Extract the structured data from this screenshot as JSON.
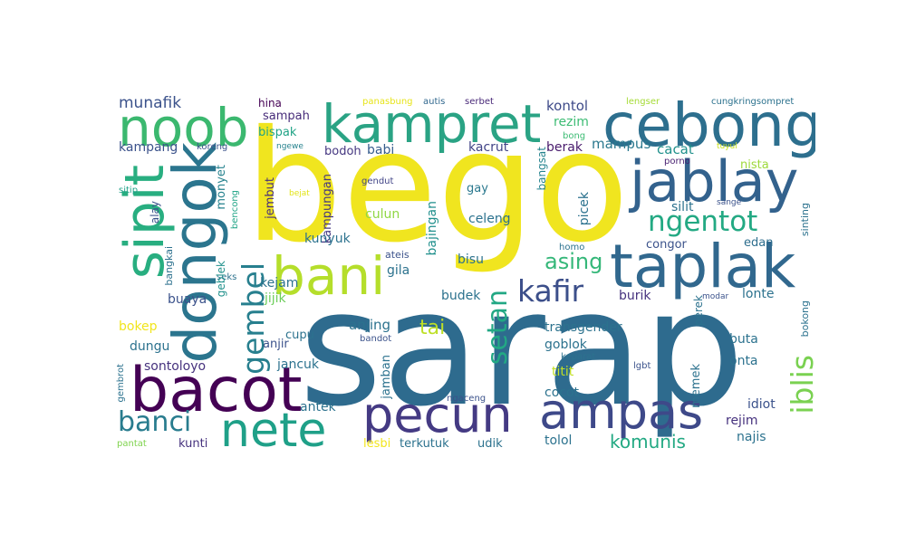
{
  "colors": {
    "background": "#ffffff",
    "palette": [
      "#440154",
      "#46327e",
      "#365c8d",
      "#277f8e",
      "#1fa187",
      "#4ac16d",
      "#a0da39",
      "#fde725"
    ]
  },
  "words": {
    "w1": "bego",
    "w2": "sarap",
    "w3": "noob",
    "w4": "kampret",
    "w5": "cebong",
    "w6": "dongok",
    "w7": "sipit",
    "w8": "jablay",
    "w9": "bani",
    "w10": "taplak",
    "w11": "ngentot",
    "w12": "bacot",
    "w13": "nete",
    "w14": "pecun",
    "w15": "ampas",
    "w16": "iblis",
    "w17": "gembel",
    "w18": "kafir",
    "w19": "setan",
    "w20": "asing",
    "w21": "banci",
    "w22": "komunis",
    "w23": "munafik",
    "w24": "hina",
    "w25": "panasbung",
    "w26": "autis",
    "w27": "serbet",
    "w28": "lengser",
    "w29": "cungkringsompret",
    "w30": "sampah",
    "w31": "kontol",
    "w32": "rezim",
    "w33": "bispak",
    "w34": "kampang",
    "w35": "koreng",
    "w36": "ngewe",
    "w37": "bong",
    "w38": "cacat",
    "w39": "tuyul",
    "w40": "bodoh",
    "w41": "babi",
    "w42": "kacrut",
    "w43": "berak",
    "w44": "mampus",
    "w45": "porno",
    "w46": "nista",
    "w47": "gendut",
    "w48": "sitip",
    "w49": "bejat",
    "w50": "monyet",
    "w51": "bencong",
    "w52": "alay",
    "w53": "jembut",
    "w54": "kampungan",
    "w55": "bangsat",
    "w56": "gay",
    "w57": "culun",
    "w58": "celeng",
    "w59": "bajingan",
    "w60": "picek",
    "w61": "silit",
    "w62": "sange",
    "w63": "sinting",
    "w64": "congor",
    "w65": "edan",
    "w66": "homo",
    "w67": "bangkai",
    "w68": "kunyuk",
    "w69": "ateis",
    "w70": "gila",
    "w71": "bisu",
    "w72": "seks",
    "w73": "geblek",
    "w74": "buaya",
    "w75": "kejam",
    "w76": "jijik",
    "w77": "budek",
    "w78": "burik",
    "w79": "lonte",
    "w80": "bokep",
    "w81": "anjing",
    "w82": "tai",
    "w83": "transgender",
    "w84": "perek",
    "w85": "modar",
    "w86": "bokong",
    "w87": "cupu",
    "w88": "anjir",
    "w89": "dungu",
    "w90": "bandot",
    "w91": "goblok",
    "w92": "buta",
    "w93": "sontoloyo",
    "w94": "jancuk",
    "w95": "keparat",
    "w96": "onta",
    "w97": "titit",
    "w98": "lgbt",
    "w99": "gembrot",
    "w100": "jamban",
    "w101": "cocot",
    "w102": "ngaceng",
    "w103": "memek",
    "w104": "idiot",
    "w105": "antek",
    "w106": "rejim",
    "w107": "najis",
    "w108": "kunti",
    "w109": "lesbi",
    "w110": "terkutuk",
    "w111": "udik",
    "w112": "tolol",
    "w113": "pantat"
  }
}
